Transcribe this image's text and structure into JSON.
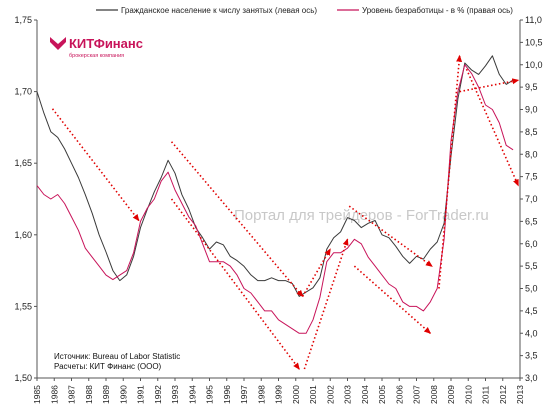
{
  "legend": {
    "employment_label": "Гражданское население к числу занятых (левая ось)",
    "unemployment_label": "Уровень безработицы - в % (правая ось)"
  },
  "logo": {
    "name": "КИТФинанс",
    "subtitle": "брокерская компания"
  },
  "watermark": "Портал для трейдеров - ForTrader.ru",
  "notes": {
    "source": "Источник: Bureau of Labor Statistic",
    "calc": "Расчеты: КИТ Финанс (ООО)"
  },
  "colors": {
    "employment": "#3a3a3a",
    "unemployment": "#c8145a",
    "trend_arrows": "#e00000"
  },
  "chart_data": {
    "type": "line",
    "x_unit": "year",
    "x_ticks": [
      "1985",
      "1986",
      "1987",
      "1988",
      "1989",
      "1990",
      "1991",
      "1992",
      "1993",
      "1994",
      "1995",
      "1996",
      "1997",
      "1998",
      "1999",
      "2000",
      "2001",
      "2002",
      "2003",
      "2004",
      "2005",
      "2006",
      "2007",
      "2008",
      "2009",
      "2010",
      "2011",
      "2012",
      "2013"
    ],
    "left_axis": {
      "ylim": [
        1.5,
        1.75
      ],
      "ticks": [
        "1,50",
        "1,55",
        "1,60",
        "1,65",
        "1,70",
        "1,75"
      ]
    },
    "right_axis": {
      "ylim": [
        3.0,
        11.0
      ],
      "ticks": [
        "3,0",
        "3,5",
        "4,0",
        "4,5",
        "5,0",
        "5,5",
        "6,0",
        "6,5",
        "7,0",
        "7,5",
        "8,0",
        "8,5",
        "9,0",
        "9,5",
        "10,0",
        "10,5",
        "11,0"
      ]
    },
    "grid": "none",
    "legend_placement": "top",
    "series": [
      {
        "name": "Гражданское население к числу занятых (левая ось)",
        "axis": "left",
        "points": [
          [
            1985.0,
            1.7
          ],
          [
            1985.4,
            1.685
          ],
          [
            1985.8,
            1.672
          ],
          [
            1986.2,
            1.668
          ],
          [
            1986.6,
            1.66
          ],
          [
            1987.0,
            1.65
          ],
          [
            1987.4,
            1.64
          ],
          [
            1987.8,
            1.628
          ],
          [
            1988.2,
            1.615
          ],
          [
            1988.6,
            1.6
          ],
          [
            1989.0,
            1.588
          ],
          [
            1989.4,
            1.575
          ],
          [
            1989.8,
            1.568
          ],
          [
            1990.2,
            1.572
          ],
          [
            1990.6,
            1.585
          ],
          [
            1991.0,
            1.605
          ],
          [
            1991.4,
            1.618
          ],
          [
            1991.8,
            1.63
          ],
          [
            1992.2,
            1.64
          ],
          [
            1992.6,
            1.652
          ],
          [
            1993.0,
            1.643
          ],
          [
            1993.4,
            1.628
          ],
          [
            1993.8,
            1.618
          ],
          [
            1994.2,
            1.605
          ],
          [
            1994.6,
            1.598
          ],
          [
            1995.0,
            1.59
          ],
          [
            1995.4,
            1.595
          ],
          [
            1995.8,
            1.593
          ],
          [
            1996.2,
            1.585
          ],
          [
            1996.6,
            1.582
          ],
          [
            1997.0,
            1.578
          ],
          [
            1997.4,
            1.572
          ],
          [
            1997.8,
            1.568
          ],
          [
            1998.2,
            1.568
          ],
          [
            1998.6,
            1.57
          ],
          [
            1999.0,
            1.568
          ],
          [
            1999.4,
            1.568
          ],
          [
            1999.8,
            1.566
          ],
          [
            2000.2,
            1.557
          ],
          [
            2000.6,
            1.56
          ],
          [
            2001.0,
            1.563
          ],
          [
            2001.4,
            1.57
          ],
          [
            2001.8,
            1.59
          ],
          [
            2002.2,
            1.598
          ],
          [
            2002.6,
            1.602
          ],
          [
            2003.0,
            1.612
          ],
          [
            2003.4,
            1.61
          ],
          [
            2003.8,
            1.605
          ],
          [
            2004.2,
            1.608
          ],
          [
            2004.6,
            1.61
          ],
          [
            2005.0,
            1.6
          ],
          [
            2005.4,
            1.598
          ],
          [
            2005.8,
            1.592
          ],
          [
            2006.2,
            1.585
          ],
          [
            2006.6,
            1.58
          ],
          [
            2007.0,
            1.585
          ],
          [
            2007.4,
            1.583
          ],
          [
            2007.8,
            1.59
          ],
          [
            2008.2,
            1.595
          ],
          [
            2008.6,
            1.608
          ],
          [
            2009.0,
            1.655
          ],
          [
            2009.4,
            1.695
          ],
          [
            2009.8,
            1.72
          ],
          [
            2010.2,
            1.715
          ],
          [
            2010.6,
            1.712
          ],
          [
            2011.0,
            1.718
          ],
          [
            2011.4,
            1.725
          ],
          [
            2011.8,
            1.712
          ],
          [
            2012.2,
            1.705
          ],
          [
            2012.6,
            1.708
          ]
        ]
      },
      {
        "name": "Уровень безработицы - в % (правая ось)",
        "axis": "right",
        "points": [
          [
            1985.0,
            7.3
          ],
          [
            1985.4,
            7.1
          ],
          [
            1985.8,
            7.0
          ],
          [
            1986.2,
            7.1
          ],
          [
            1986.6,
            6.9
          ],
          [
            1987.0,
            6.6
          ],
          [
            1987.4,
            6.3
          ],
          [
            1987.8,
            5.9
          ],
          [
            1988.2,
            5.7
          ],
          [
            1988.6,
            5.5
          ],
          [
            1989.0,
            5.3
          ],
          [
            1989.4,
            5.2
          ],
          [
            1989.8,
            5.3
          ],
          [
            1990.2,
            5.4
          ],
          [
            1990.6,
            5.8
          ],
          [
            1991.0,
            6.5
          ],
          [
            1991.4,
            6.8
          ],
          [
            1991.8,
            7.0
          ],
          [
            1992.2,
            7.4
          ],
          [
            1992.6,
            7.6
          ],
          [
            1993.0,
            7.2
          ],
          [
            1993.4,
            6.9
          ],
          [
            1993.8,
            6.6
          ],
          [
            1994.2,
            6.4
          ],
          [
            1994.6,
            6.0
          ],
          [
            1995.0,
            5.6
          ],
          [
            1995.4,
            5.6
          ],
          [
            1995.8,
            5.6
          ],
          [
            1996.2,
            5.5
          ],
          [
            1996.6,
            5.3
          ],
          [
            1997.0,
            5.0
          ],
          [
            1997.4,
            4.9
          ],
          [
            1997.8,
            4.7
          ],
          [
            1998.2,
            4.5
          ],
          [
            1998.6,
            4.5
          ],
          [
            1999.0,
            4.3
          ],
          [
            1999.4,
            4.2
          ],
          [
            1999.8,
            4.1
          ],
          [
            2000.2,
            4.0
          ],
          [
            2000.6,
            4.0
          ],
          [
            2001.0,
            4.3
          ],
          [
            2001.4,
            4.8
          ],
          [
            2001.8,
            5.6
          ],
          [
            2002.2,
            5.8
          ],
          [
            2002.6,
            5.8
          ],
          [
            2003.0,
            5.9
          ],
          [
            2003.4,
            6.1
          ],
          [
            2003.8,
            6.0
          ],
          [
            2004.2,
            5.7
          ],
          [
            2004.6,
            5.5
          ],
          [
            2005.0,
            5.3
          ],
          [
            2005.4,
            5.1
          ],
          [
            2005.8,
            5.0
          ],
          [
            2006.2,
            4.7
          ],
          [
            2006.6,
            4.6
          ],
          [
            2007.0,
            4.6
          ],
          [
            2007.4,
            4.5
          ],
          [
            2007.8,
            4.7
          ],
          [
            2008.2,
            5.0
          ],
          [
            2008.6,
            6.1
          ],
          [
            2009.0,
            8.3
          ],
          [
            2009.4,
            9.4
          ],
          [
            2009.8,
            10.0
          ],
          [
            2010.2,
            9.8
          ],
          [
            2010.6,
            9.5
          ],
          [
            2011.0,
            9.1
          ],
          [
            2011.4,
            9.0
          ],
          [
            2011.8,
            8.7
          ],
          [
            2012.2,
            8.2
          ],
          [
            2012.6,
            8.1
          ]
        ]
      }
    ],
    "trend_arrows": [
      {
        "axis": "left",
        "from": [
          1985.9,
          1.688
        ],
        "to": [
          1990.9,
          1.61
        ]
      },
      {
        "axis": "left",
        "from": [
          1992.8,
          1.665
        ],
        "to": [
          2000.4,
          1.557
        ]
      },
      {
        "axis": "left",
        "from": [
          2000.4,
          1.557
        ],
        "to": [
          2002.0,
          1.59
        ]
      },
      {
        "axis": "left",
        "from": [
          2003.1,
          1.62
        ],
        "to": [
          2007.9,
          1.578
        ]
      },
      {
        "axis": "left",
        "from": [
          2009.5,
          1.7
        ],
        "to": [
          2012.9,
          1.708
        ]
      },
      {
        "axis": "right",
        "from": [
          1992.8,
          7.0
        ],
        "to": [
          2000.2,
          3.2
        ]
      },
      {
        "axis": "right",
        "from": [
          2000.5,
          3.2
        ],
        "to": [
          2003.0,
          6.1
        ]
      },
      {
        "axis": "right",
        "from": [
          2003.4,
          5.5
        ],
        "to": [
          2007.8,
          4.0
        ]
      },
      {
        "axis": "right",
        "from": [
          2008.3,
          5.0
        ],
        "to": [
          2009.5,
          10.2
        ]
      },
      {
        "axis": "right",
        "from": [
          2009.9,
          9.9
        ],
        "to": [
          2012.9,
          7.3
        ]
      }
    ]
  }
}
